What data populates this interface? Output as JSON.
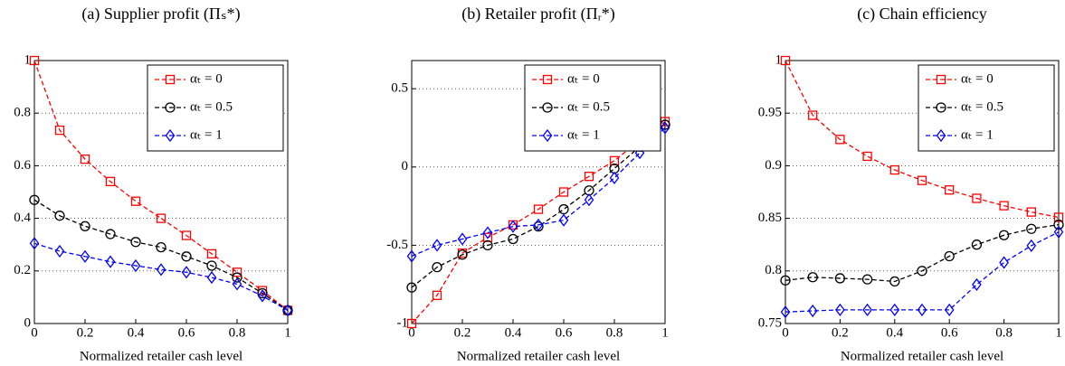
{
  "chart_data": [
    {
      "type": "line",
      "title": "(a) Supplier profit (Πₛ*)",
      "xlabel": "Normalized retailer cash level",
      "x": [
        0,
        0.1,
        0.2,
        0.3,
        0.4,
        0.5,
        0.6,
        0.7,
        0.8,
        0.9,
        1
      ],
      "xlim": [
        0,
        1
      ],
      "xticks": [
        0,
        0.2,
        0.4,
        0.6,
        0.8,
        1
      ],
      "ylim": [
        0,
        1
      ],
      "yticks": [
        0,
        0.2,
        0.4,
        0.6,
        0.8,
        1
      ],
      "grid": "y",
      "legend": "upper right",
      "series": [
        {
          "name": "αₜ = 0",
          "color": "#ff0000",
          "marker": "square",
          "values": [
            1,
            0.735,
            0.625,
            0.54,
            0.465,
            0.4,
            0.335,
            0.265,
            0.195,
            0.125,
            0.05
          ]
        },
        {
          "name": "αₜ = 0.5",
          "color": "#000000",
          "marker": "circle",
          "values": [
            0.47,
            0.41,
            0.37,
            0.34,
            0.31,
            0.29,
            0.255,
            0.22,
            0.175,
            0.115,
            0.05
          ]
        },
        {
          "name": "αₜ = 1",
          "color": "#0000ff",
          "marker": "diamond",
          "values": [
            0.305,
            0.275,
            0.255,
            0.235,
            0.22,
            0.205,
            0.195,
            0.175,
            0.15,
            0.105,
            0.05
          ]
        }
      ]
    },
    {
      "type": "line",
      "title": "(b) Retailer profit (Πᵣ*)",
      "xlabel": "Normalized retailer cash level",
      "x": [
        0,
        0.1,
        0.2,
        0.3,
        0.4,
        0.5,
        0.6,
        0.7,
        0.8,
        0.9,
        1
      ],
      "xlim": [
        0,
        1
      ],
      "xticks": [
        0,
        0.2,
        0.4,
        0.6,
        0.8,
        1
      ],
      "ylim": [
        -1,
        0.68
      ],
      "yticks": [
        -1,
        -0.5,
        0,
        0.5
      ],
      "grid": "y",
      "legend": "upper right",
      "series": [
        {
          "name": "αₜ = 0",
          "color": "#ff0000",
          "marker": "square",
          "values": [
            -1,
            -0.82,
            -0.55,
            -0.45,
            -0.37,
            -0.27,
            -0.16,
            -0.06,
            0.04,
            0.17,
            0.29
          ]
        },
        {
          "name": "αₜ = 0.5",
          "color": "#000000",
          "marker": "circle",
          "values": [
            -0.77,
            -0.64,
            -0.56,
            -0.5,
            -0.46,
            -0.38,
            -0.27,
            -0.15,
            -0.01,
            0.13,
            0.27
          ]
        },
        {
          "name": "αₜ = 1",
          "color": "#0000ff",
          "marker": "diamond",
          "values": [
            -0.57,
            -0.5,
            -0.46,
            -0.42,
            -0.38,
            -0.37,
            -0.34,
            -0.21,
            -0.07,
            0.09,
            0.25
          ]
        }
      ]
    },
    {
      "type": "line",
      "title": "(c) Chain efficiency",
      "xlabel": "Normalized retailer cash level",
      "x": [
        0,
        0.1,
        0.2,
        0.3,
        0.4,
        0.5,
        0.6,
        0.7,
        0.8,
        0.9,
        1
      ],
      "xlim": [
        0,
        1
      ],
      "xticks": [
        0,
        0.2,
        0.4,
        0.6,
        0.8,
        1
      ],
      "ylim": [
        0.75,
        1
      ],
      "yticks": [
        0.75,
        0.8,
        0.85,
        0.9,
        0.95,
        1
      ],
      "grid": "y",
      "legend": "upper right",
      "series": [
        {
          "name": "αₜ = 0",
          "color": "#ff0000",
          "marker": "square",
          "values": [
            1,
            0.948,
            0.925,
            0.909,
            0.896,
            0.886,
            0.877,
            0.869,
            0.862,
            0.856,
            0.851
          ]
        },
        {
          "name": "αₜ = 0.5",
          "color": "#000000",
          "marker": "circle",
          "values": [
            0.791,
            0.794,
            0.793,
            0.792,
            0.79,
            0.8,
            0.814,
            0.825,
            0.834,
            0.84,
            0.844
          ]
        },
        {
          "name": "αₜ = 1",
          "color": "#0000ff",
          "marker": "diamond",
          "values": [
            0.761,
            0.762,
            0.763,
            0.763,
            0.763,
            0.763,
            0.763,
            0.787,
            0.808,
            0.824,
            0.837
          ]
        }
      ]
    }
  ]
}
